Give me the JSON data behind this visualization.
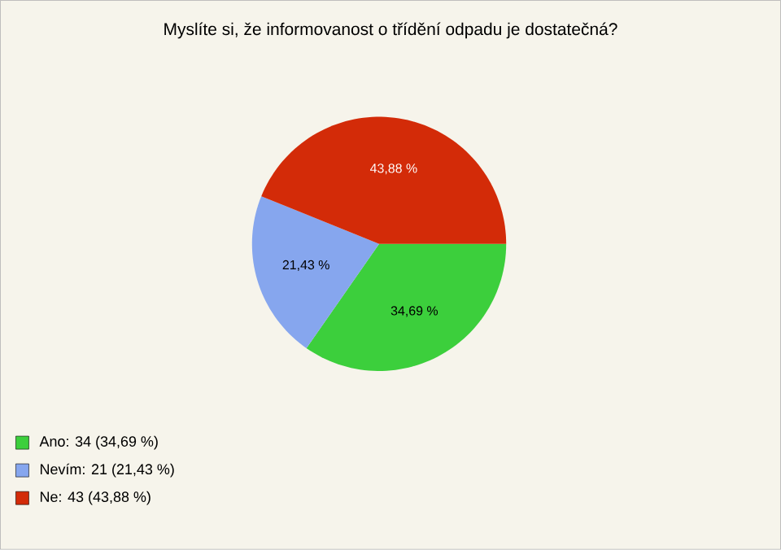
{
  "chart_data": {
    "type": "pie",
    "title": "Myslíte si, že informovanost o třídění odpadu je dostatečná?",
    "categories": [
      "Ano: 34 (34,69 %)",
      "Nevím: 21 (21,43 %)",
      "Ne: 43 (43,88 %)"
    ],
    "values": [
      34.69,
      21.43,
      43.88
    ],
    "value_labels": [
      "34,69 %",
      "21,43 %",
      "43,88 %"
    ],
    "colors": [
      "#3ccf3c",
      "#86a6ee",
      "#d32b08"
    ],
    "legend": "bottom left"
  }
}
